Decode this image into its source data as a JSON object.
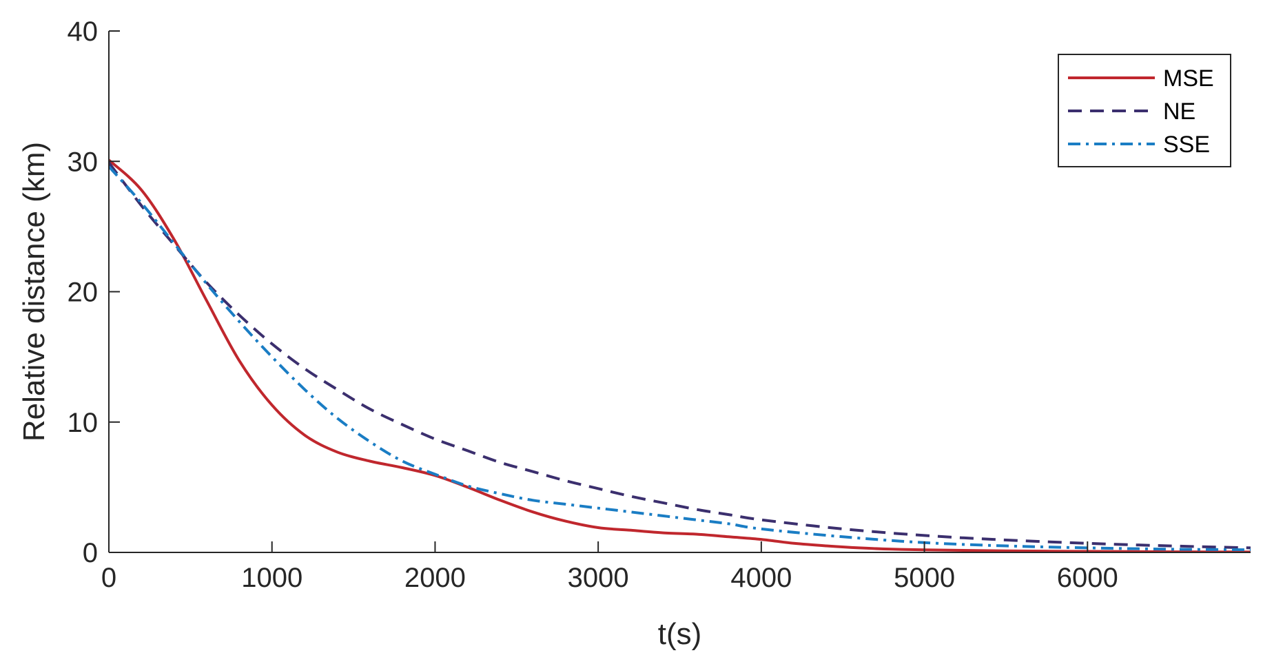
{
  "chart_data": {
    "type": "line",
    "title": "",
    "xlabel": "t(s)",
    "ylabel": "Relative distance (km)",
    "xlim": [
      0,
      7000
    ],
    "ylim": [
      0,
      40
    ],
    "xticks": [
      0,
      1000,
      2000,
      3000,
      4000,
      5000,
      6000
    ],
    "xtick_labels": [
      "0",
      "1000",
      "2000",
      "3000",
      "4000",
      "5000",
      "6000"
    ],
    "yticks": [
      0,
      10,
      20,
      30,
      40
    ],
    "ytick_labels": [
      "0",
      "10",
      "20",
      "30",
      "40"
    ],
    "grid": false,
    "legend_position": "top-right",
    "series": [
      {
        "name": "MSE",
        "color": "#C0272D",
        "style": "solid",
        "x": [
          0,
          200,
          400,
          600,
          800,
          1000,
          1200,
          1400,
          1600,
          1800,
          2000,
          2200,
          2400,
          2600,
          2800,
          3000,
          3200,
          3400,
          3600,
          3800,
          4000,
          4200,
          4400,
          4600,
          4800,
          5000,
          5500,
          6000,
          6500,
          7000
        ],
        "values": [
          30.1,
          27.8,
          24.0,
          19.3,
          14.7,
          11.3,
          9.0,
          7.7,
          7.0,
          6.5,
          5.9,
          5.0,
          4.0,
          3.1,
          2.4,
          1.9,
          1.7,
          1.5,
          1.4,
          1.2,
          1.0,
          0.7,
          0.5,
          0.35,
          0.25,
          0.2,
          0.12,
          0.08,
          0.05,
          0.03
        ]
      },
      {
        "name": "NE",
        "color": "#3B2F6E",
        "style": "dashed",
        "x": [
          0,
          200,
          400,
          600,
          800,
          1000,
          1200,
          1400,
          1600,
          1800,
          2000,
          2200,
          2400,
          2600,
          2800,
          3000,
          3200,
          3400,
          3600,
          3800,
          4000,
          4500,
          5000,
          5500,
          6000,
          6500,
          7000
        ],
        "values": [
          29.9,
          26.6,
          23.6,
          20.7,
          18.2,
          16.0,
          14.1,
          12.5,
          11.0,
          9.8,
          8.7,
          7.8,
          6.9,
          6.2,
          5.5,
          4.9,
          4.3,
          3.8,
          3.3,
          2.9,
          2.5,
          1.8,
          1.3,
          0.95,
          0.7,
          0.5,
          0.35
        ]
      },
      {
        "name": "SSE",
        "color": "#1A7DC4",
        "style": "dashdot",
        "x": [
          0,
          200,
          400,
          600,
          800,
          1000,
          1200,
          1400,
          1600,
          1800,
          2000,
          2200,
          2400,
          2600,
          2800,
          3000,
          3200,
          3400,
          3600,
          3800,
          4000,
          4500,
          5000,
          5500,
          6000,
          6500,
          7000
        ],
        "values": [
          29.6,
          26.8,
          23.7,
          20.6,
          17.7,
          15.0,
          12.5,
          10.3,
          8.5,
          7.0,
          6.0,
          5.1,
          4.5,
          4.0,
          3.7,
          3.4,
          3.1,
          2.8,
          2.5,
          2.2,
          1.8,
          1.2,
          0.75,
          0.5,
          0.35,
          0.25,
          0.2
        ]
      }
    ]
  }
}
